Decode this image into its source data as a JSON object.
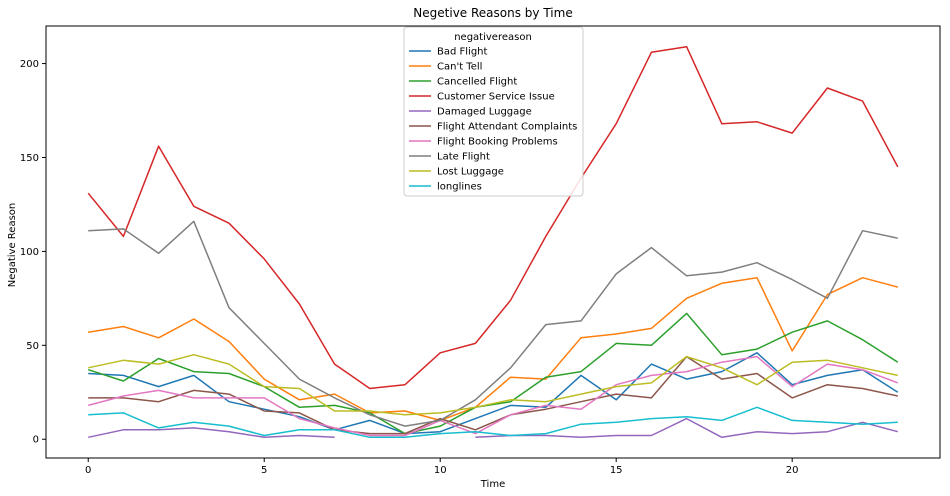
{
  "chart_data": {
    "type": "line",
    "title": "Negetive Reasons by Time",
    "xlabel": "Time",
    "ylabel": "Negative Reason",
    "xlim": [
      -1.2,
      24.2
    ],
    "ylim": [
      -10,
      220
    ],
    "xticks": [
      0,
      5,
      10,
      15,
      20
    ],
    "yticks": [
      0,
      50,
      100,
      150,
      200
    ],
    "grid": false,
    "legend": {
      "title": "negativereason",
      "position": "upper-center"
    },
    "series": [
      {
        "name": "Bad Flight",
        "color": "#1f77b4",
        "points": [
          [
            0,
            35
          ],
          [
            1,
            34
          ],
          [
            2,
            28
          ],
          [
            3,
            34
          ],
          [
            4,
            20
          ],
          [
            5,
            16
          ],
          [
            6,
            12
          ],
          [
            7,
            5
          ],
          [
            8,
            10
          ],
          [
            9,
            3
          ],
          [
            10,
            4
          ],
          [
            11,
            11
          ],
          [
            12,
            18
          ],
          [
            13,
            17
          ],
          [
            14,
            34
          ],
          [
            15,
            21
          ],
          [
            16,
            40
          ],
          [
            17,
            32
          ],
          [
            18,
            36
          ],
          [
            19,
            46
          ],
          [
            20,
            29
          ],
          [
            21,
            34
          ],
          [
            22,
            37
          ],
          [
            23,
            25
          ]
        ]
      },
      {
        "name": "Can't Tell",
        "color": "#ff7f0e",
        "points": [
          [
            0,
            57
          ],
          [
            1,
            60
          ],
          [
            2,
            54
          ],
          [
            3,
            64
          ],
          [
            4,
            52
          ],
          [
            5,
            32
          ],
          [
            6,
            21
          ],
          [
            7,
            24
          ],
          [
            8,
            14
          ],
          [
            9,
            15
          ],
          [
            10,
            10
          ],
          [
            11,
            17
          ],
          [
            12,
            33
          ],
          [
            13,
            32
          ],
          [
            14,
            54
          ],
          [
            15,
            56
          ],
          [
            16,
            59
          ],
          [
            17,
            75
          ],
          [
            18,
            83
          ],
          [
            19,
            86
          ],
          [
            20,
            47
          ],
          [
            21,
            77
          ],
          [
            22,
            86
          ],
          [
            23,
            81
          ]
        ]
      },
      {
        "name": "Cancelled Flight",
        "color": "#2ca02c",
        "points": [
          [
            0,
            37
          ],
          [
            1,
            31
          ],
          [
            2,
            43
          ],
          [
            3,
            36
          ],
          [
            4,
            35
          ],
          [
            5,
            28
          ],
          [
            6,
            17
          ],
          [
            7,
            18
          ],
          [
            8,
            14
          ],
          [
            9,
            3
          ],
          [
            10,
            7
          ],
          [
            11,
            17
          ],
          [
            12,
            20
          ],
          [
            13,
            33
          ],
          [
            14,
            36
          ],
          [
            15,
            51
          ],
          [
            16,
            50
          ],
          [
            17,
            67
          ],
          [
            18,
            45
          ],
          [
            19,
            48
          ],
          [
            20,
            57
          ],
          [
            21,
            63
          ],
          [
            22,
            53
          ],
          [
            23,
            41
          ]
        ]
      },
      {
        "name": "Customer Service Issue",
        "color": "#d62728",
        "points": [
          [
            0,
            131
          ],
          [
            1,
            108
          ],
          [
            2,
            156
          ],
          [
            3,
            124
          ],
          [
            4,
            115
          ],
          [
            5,
            96
          ],
          [
            6,
            72
          ],
          [
            7,
            40
          ],
          [
            8,
            27
          ],
          [
            9,
            29
          ],
          [
            10,
            46
          ],
          [
            11,
            51
          ],
          [
            12,
            74
          ],
          [
            13,
            108
          ],
          [
            14,
            139
          ],
          [
            15,
            168
          ],
          [
            16,
            206
          ],
          [
            17,
            209
          ],
          [
            18,
            168
          ],
          [
            19,
            169
          ],
          [
            20,
            163
          ],
          [
            21,
            187
          ],
          [
            22,
            180
          ],
          [
            23,
            145
          ]
        ]
      },
      {
        "name": "Damaged Luggage",
        "color": "#9467bd",
        "points": [
          [
            0,
            1
          ],
          [
            1,
            5
          ],
          [
            2,
            5
          ],
          [
            3,
            6
          ],
          [
            4,
            4
          ],
          [
            5,
            1
          ],
          [
            6,
            2
          ],
          [
            7,
            1
          ],
          [
            11,
            1
          ],
          [
            12,
            2
          ],
          [
            13,
            2
          ],
          [
            14,
            1
          ],
          [
            15,
            2
          ],
          [
            16,
            2
          ],
          [
            17,
            11
          ],
          [
            18,
            1
          ],
          [
            19,
            4
          ],
          [
            20,
            3
          ],
          [
            21,
            4
          ],
          [
            22,
            9
          ],
          [
            23,
            4
          ]
        ]
      },
      {
        "name": "Flight Attendant Complaints",
        "color": "#8c564b",
        "points": [
          [
            0,
            22
          ],
          [
            1,
            22
          ],
          [
            2,
            20
          ],
          [
            3,
            26
          ],
          [
            4,
            24
          ],
          [
            5,
            15
          ],
          [
            6,
            14
          ],
          [
            7,
            5
          ],
          [
            8,
            3
          ],
          [
            9,
            3
          ],
          [
            10,
            11
          ],
          [
            11,
            5
          ],
          [
            12,
            13
          ],
          [
            13,
            16
          ],
          [
            14,
            20
          ],
          [
            15,
            24
          ],
          [
            16,
            22
          ],
          [
            17,
            44
          ],
          [
            18,
            32
          ],
          [
            19,
            35
          ],
          [
            20,
            22
          ],
          [
            21,
            29
          ],
          [
            22,
            27
          ],
          [
            23,
            23
          ]
        ]
      },
      {
        "name": "Flight Booking Problems",
        "color": "#e377c2",
        "points": [
          [
            0,
            18
          ],
          [
            1,
            23
          ],
          [
            2,
            26
          ],
          [
            3,
            22
          ],
          [
            4,
            22
          ],
          [
            5,
            22
          ],
          [
            6,
            11
          ],
          [
            7,
            6
          ],
          [
            8,
            2
          ],
          [
            9,
            2
          ],
          [
            10,
            10
          ],
          [
            11,
            3
          ],
          [
            12,
            13
          ],
          [
            13,
            18
          ],
          [
            14,
            16
          ],
          [
            15,
            29
          ],
          [
            16,
            34
          ],
          [
            17,
            36
          ],
          [
            18,
            41
          ],
          [
            19,
            44
          ],
          [
            20,
            28
          ],
          [
            21,
            40
          ],
          [
            22,
            37
          ],
          [
            23,
            30
          ]
        ]
      },
      {
        "name": "Late Flight",
        "color": "#7f7f7f",
        "points": [
          [
            0,
            111
          ],
          [
            1,
            112
          ],
          [
            2,
            99
          ],
          [
            3,
            116
          ],
          [
            4,
            70
          ],
          [
            5,
            51
          ],
          [
            6,
            32
          ],
          [
            7,
            22
          ],
          [
            8,
            13
          ],
          [
            9,
            7
          ],
          [
            10,
            10
          ],
          [
            11,
            21
          ],
          [
            12,
            38
          ],
          [
            13,
            61
          ],
          [
            14,
            63
          ],
          [
            15,
            88
          ],
          [
            16,
            102
          ],
          [
            17,
            87
          ],
          [
            18,
            89
          ],
          [
            19,
            94
          ],
          [
            20,
            85
          ],
          [
            21,
            75
          ],
          [
            22,
            111
          ],
          [
            23,
            107
          ]
        ]
      },
      {
        "name": "Lost Luggage",
        "color": "#bcbd22",
        "points": [
          [
            0,
            38
          ],
          [
            1,
            42
          ],
          [
            2,
            40
          ],
          [
            3,
            45
          ],
          [
            4,
            40
          ],
          [
            5,
            28
          ],
          [
            6,
            27
          ],
          [
            7,
            15
          ],
          [
            8,
            15
          ],
          [
            9,
            13
          ],
          [
            10,
            14
          ],
          [
            11,
            17
          ],
          [
            12,
            21
          ],
          [
            13,
            20
          ],
          [
            14,
            24
          ],
          [
            15,
            28
          ],
          [
            16,
            30
          ],
          [
            17,
            44
          ],
          [
            18,
            38
          ],
          [
            19,
            29
          ],
          [
            20,
            41
          ],
          [
            21,
            42
          ],
          [
            22,
            38
          ],
          [
            23,
            34
          ]
        ]
      },
      {
        "name": "longlines",
        "color": "#17becf",
        "points": [
          [
            0,
            13
          ],
          [
            1,
            14
          ],
          [
            2,
            6
          ],
          [
            3,
            9
          ],
          [
            4,
            7
          ],
          [
            5,
            2
          ],
          [
            6,
            5
          ],
          [
            7,
            5
          ],
          [
            8,
            1
          ],
          [
            9,
            1
          ],
          [
            10,
            3
          ],
          [
            11,
            4
          ],
          [
            12,
            2
          ],
          [
            13,
            3
          ],
          [
            14,
            8
          ],
          [
            15,
            9
          ],
          [
            16,
            11
          ],
          [
            17,
            12
          ],
          [
            18,
            10
          ],
          [
            19,
            17
          ],
          [
            20,
            10
          ],
          [
            21,
            9
          ],
          [
            22,
            8
          ],
          [
            23,
            9
          ]
        ]
      }
    ]
  }
}
